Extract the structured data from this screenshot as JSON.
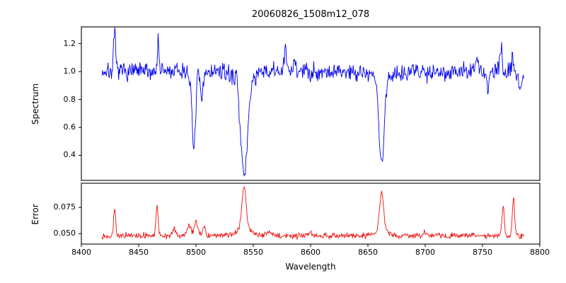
{
  "figure": {
    "title": "20060826_1508m12_078",
    "xlabel": "Wavelength",
    "background": "#ffffff",
    "spine_color": "#000000"
  },
  "chart_data": [
    {
      "type": "line",
      "panel": "spectrum",
      "title": "20060826_1508m12_078",
      "ylabel": "Spectrum",
      "color": "#0000ee",
      "xlim": [
        8400,
        8800
      ],
      "ylim": [
        0.22,
        1.32
      ],
      "x_data_range": [
        8418,
        8786
      ],
      "x_ticks": [
        8400,
        8450,
        8500,
        8550,
        8600,
        8650,
        8700,
        8750,
        8800
      ],
      "x_tick_labels": [
        "8400",
        "8450",
        "8500",
        "8550",
        "8600",
        "8650",
        "8700",
        "8750",
        "8800"
      ],
      "y_ticks": [
        0.4,
        0.6,
        0.8,
        1.0,
        1.2
      ],
      "y_tick_labels": [
        "0.4",
        "0.6",
        "0.8",
        "1.0",
        "1.2"
      ],
      "grid": false,
      "baseline": 1.0,
      "noise_sigma": 0.032,
      "seed": 7,
      "n_points": 760,
      "features": [
        {
          "center": 8429,
          "amp": 0.27,
          "width": 0.9
        },
        {
          "center": 8467,
          "amp": 0.22,
          "width": 0.8
        },
        {
          "center": 8498,
          "amp": -0.55,
          "width": 1.6
        },
        {
          "center": 8505,
          "amp": -0.22,
          "width": 1.2
        },
        {
          "center": 8536,
          "amp": 0.1,
          "width": 0.8
        },
        {
          "center": 8542,
          "amp": -0.7,
          "width": 2.9
        },
        {
          "center": 8542,
          "amp": -0.06,
          "width": 9.0
        },
        {
          "center": 8578,
          "amp": 0.16,
          "width": 0.9
        },
        {
          "center": 8586,
          "amp": 0.12,
          "width": 0.8
        },
        {
          "center": 8662,
          "amp": -0.6,
          "width": 2.3
        },
        {
          "center": 8662,
          "amp": -0.05,
          "width": 7.0
        },
        {
          "center": 8745,
          "amp": 0.12,
          "width": 0.8
        },
        {
          "center": 8755,
          "amp": -0.13,
          "width": 1.0
        },
        {
          "center": 8766,
          "amp": 0.17,
          "width": 0.8
        },
        {
          "center": 8776,
          "amp": 0.12,
          "width": 0.8
        },
        {
          "center": 8783,
          "amp": -0.14,
          "width": 1.0
        }
      ]
    },
    {
      "type": "line",
      "panel": "error",
      "ylabel": "Error",
      "color": "#ee1111",
      "xlim": [
        8400,
        8800
      ],
      "ylim": [
        0.04,
        0.098
      ],
      "x_data_range": [
        8418,
        8786
      ],
      "y_ticks": [
        0.05,
        0.075
      ],
      "y_tick_labels": [
        "0.050",
        "0.075"
      ],
      "grid": false,
      "baseline": 0.048,
      "noise_sigma": 0.0013,
      "seed": 13,
      "n_points": 760,
      "features": [
        {
          "center": 8429,
          "amp": 0.024,
          "width": 0.9
        },
        {
          "center": 8466,
          "amp": 0.03,
          "width": 0.9
        },
        {
          "center": 8481,
          "amp": 0.006,
          "width": 1.4
        },
        {
          "center": 8494,
          "amp": 0.011,
          "width": 1.6
        },
        {
          "center": 8500,
          "amp": 0.013,
          "width": 1.6
        },
        {
          "center": 8507,
          "amp": 0.009,
          "width": 1.2
        },
        {
          "center": 8542,
          "amp": 0.04,
          "width": 1.8
        },
        {
          "center": 8542,
          "amp": 0.007,
          "width": 6.0
        },
        {
          "center": 8563,
          "amp": 0.004,
          "width": 2.0
        },
        {
          "center": 8600,
          "amp": 0.003,
          "width": 2.0
        },
        {
          "center": 8662,
          "amp": 0.036,
          "width": 1.7
        },
        {
          "center": 8662,
          "amp": 0.006,
          "width": 5.0
        },
        {
          "center": 8700,
          "amp": 0.003,
          "width": 1.5
        },
        {
          "center": 8768,
          "amp": 0.027,
          "width": 1.0
        },
        {
          "center": 8777,
          "amp": 0.036,
          "width": 1.0
        }
      ]
    }
  ]
}
